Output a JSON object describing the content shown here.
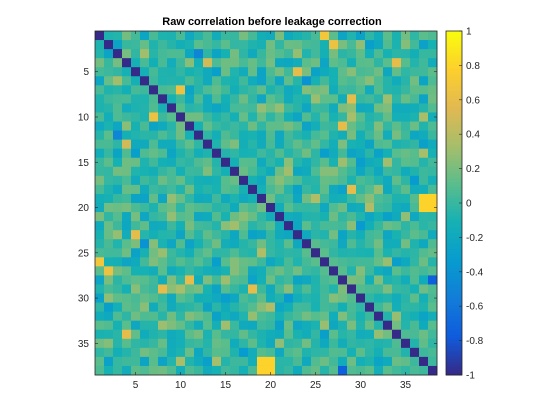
{
  "chart_data": {
    "type": "heatmap",
    "title": "Raw correlation before leakage correction",
    "n": 38,
    "xlabel": "",
    "ylabel": "",
    "x_ticks": [
      5,
      10,
      15,
      20,
      25,
      30,
      35
    ],
    "y_ticks": [
      5,
      10,
      15,
      20,
      25,
      30,
      35
    ],
    "x_range": [
      0.5,
      38.5
    ],
    "y_range": [
      0.5,
      38.5
    ],
    "y_direction": "reversed",
    "diagonal_value": -1,
    "colorbar": {
      "colormap": "parula",
      "clim": [
        -1,
        1
      ],
      "ticks": [
        -1,
        -0.8,
        -0.6,
        -0.4,
        -0.2,
        0,
        0.2,
        0.4,
        0.6,
        0.8,
        1
      ],
      "tick_labels": [
        "-1",
        "-0.8",
        "-0.6",
        "-0.4",
        "-0.2",
        "0",
        "0.2",
        "0.4",
        "0.6",
        "0.8",
        "1"
      ],
      "location": "right"
    },
    "notable_values": [
      {
        "row": 1,
        "col": 26,
        "value": 0.7
      },
      {
        "row": 7,
        "col": 10,
        "value": 0.65
      },
      {
        "row": 11,
        "col": 28,
        "value": 0.6
      },
      {
        "row": 20,
        "col": 37,
        "value": 0.8
      },
      {
        "row": 20,
        "col": 38,
        "value": 0.8
      },
      {
        "row": 27,
        "col": 2,
        "value": 0.65
      },
      {
        "row": 28,
        "col": 38,
        "value": -0.75
      },
      {
        "row": 29,
        "col": 8,
        "value": 0.6
      },
      {
        "row": 29,
        "col": 18,
        "value": 0.6
      },
      {
        "row": 34,
        "col": 4,
        "value": 0.6
      },
      {
        "row": 37,
        "col": 19,
        "value": 0.8
      },
      {
        "row": 37,
        "col": 20,
        "value": 0.8
      },
      {
        "row": 38,
        "col": 19,
        "value": 0.8
      },
      {
        "row": 38,
        "col": 20,
        "value": 0.8
      },
      {
        "row": 5,
        "col": 23,
        "value": 0.6
      },
      {
        "row": 4,
        "col": 13,
        "value": 0.5
      },
      {
        "row": 12,
        "col": 3,
        "value": -0.5
      },
      {
        "row": 24,
        "col": 6,
        "value": -0.4
      }
    ]
  }
}
